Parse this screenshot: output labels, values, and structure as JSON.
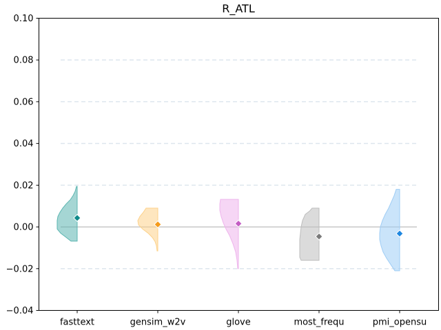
{
  "chart_data": {
    "type": "violin",
    "title": "R_ATL",
    "xlabel": "",
    "ylabel": "",
    "ylim": [
      -0.04,
      0.1
    ],
    "yticks": [
      -0.04,
      -0.02,
      0.0,
      0.02,
      0.04,
      0.06,
      0.08,
      0.1
    ],
    "ytick_labels": [
      "−0.04",
      "−0.02",
      "0.00",
      "0.02",
      "0.04",
      "0.06",
      "0.08",
      "0.10"
    ],
    "categories": [
      "fasttext",
      "gensim_w2v",
      "glove",
      "most_frequ",
      "pmi_opensu"
    ],
    "grid": "horizontal-dashed",
    "reference_line": 0.0,
    "series": [
      {
        "category": "fasttext",
        "mean": 0.0043,
        "min": -0.0068,
        "max": 0.0194,
        "color": "#5bb5b0",
        "marker_color": "#0e8a8a",
        "profile": [
          [
            -0.0068,
            9
          ],
          [
            -0.005,
            16
          ],
          [
            -0.003,
            24
          ],
          [
            -0.001,
            29
          ],
          [
            0.001,
            29
          ],
          [
            0.003,
            29
          ],
          [
            0.005,
            28
          ],
          [
            0.007,
            25
          ],
          [
            0.009,
            21
          ],
          [
            0.011,
            16
          ],
          [
            0.013,
            10
          ],
          [
            0.015,
            6
          ],
          [
            0.017,
            3
          ],
          [
            0.0194,
            1
          ]
        ]
      },
      {
        "category": "gensim_w2v",
        "mean": 0.0012,
        "min": -0.0115,
        "max": 0.009,
        "color": "#fdd28a",
        "marker_color": "#f59b1b",
        "profile": [
          [
            -0.0115,
            1
          ],
          [
            -0.009,
            2
          ],
          [
            -0.007,
            4
          ],
          [
            -0.005,
            8
          ],
          [
            -0.003,
            14
          ],
          [
            -0.001,
            22
          ],
          [
            0.001,
            28
          ],
          [
            0.003,
            29
          ],
          [
            0.005,
            26
          ],
          [
            0.007,
            21
          ],
          [
            0.009,
            17
          ]
        ]
      },
      {
        "category": "glove",
        "mean": 0.0016,
        "min": -0.02,
        "max": 0.0132,
        "color": "#eeb4ec",
        "marker_color": "#c45cc4",
        "profile": [
          [
            -0.02,
            1
          ],
          [
            -0.016,
            2
          ],
          [
            -0.012,
            4
          ],
          [
            -0.008,
            8
          ],
          [
            -0.004,
            13
          ],
          [
            -0.001,
            18
          ],
          [
            0.002,
            22
          ],
          [
            0.005,
            25
          ],
          [
            0.008,
            27
          ],
          [
            0.011,
            27
          ],
          [
            0.0132,
            26
          ]
        ]
      },
      {
        "category": "most_frequ",
        "mean": -0.0046,
        "min": -0.016,
        "max": 0.009,
        "color": "#bdbdbd",
        "marker_color": "#7a7a7a",
        "profile": [
          [
            -0.016,
            26
          ],
          [
            -0.0145,
            28
          ],
          [
            -0.012,
            28
          ],
          [
            -0.009,
            28
          ],
          [
            -0.006,
            28
          ],
          [
            -0.003,
            27
          ],
          [
            0.0,
            26
          ],
          [
            0.003,
            24
          ],
          [
            0.006,
            20
          ],
          [
            0.0075,
            14
          ],
          [
            0.009,
            10
          ]
        ]
      },
      {
        "category": "pmi_opensu",
        "mean": -0.0032,
        "min": -0.021,
        "max": 0.018,
        "color": "#9fcdf5",
        "marker_color": "#1f87e0",
        "profile": [
          [
            -0.021,
            7
          ],
          [
            -0.018,
            13
          ],
          [
            -0.015,
            19
          ],
          [
            -0.012,
            24
          ],
          [
            -0.009,
            27
          ],
          [
            -0.006,
            29
          ],
          [
            -0.003,
            29
          ],
          [
            0.0,
            28
          ],
          [
            0.003,
            25
          ],
          [
            0.006,
            21
          ],
          [
            0.009,
            16
          ],
          [
            0.012,
            12
          ],
          [
            0.015,
            8
          ],
          [
            0.018,
            5
          ]
        ]
      }
    ]
  }
}
